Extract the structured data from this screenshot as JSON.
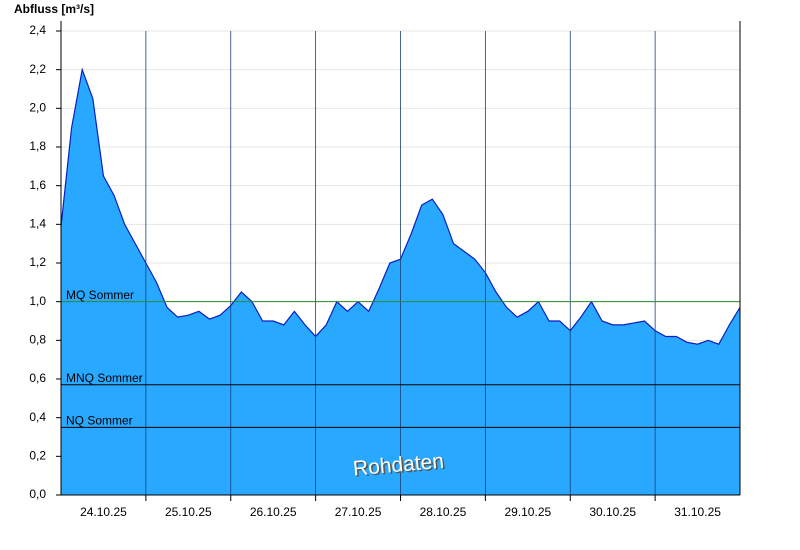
{
  "chart_data": {
    "type": "area",
    "title": "Abfluss [m³/s]",
    "annotation": "Rohdaten",
    "color": "#29a8ff",
    "line_color": "#0a1fbf",
    "xlim": [
      0,
      8
    ],
    "xticks": [
      {
        "value": 0.5,
        "label": "24.10.25"
      },
      {
        "value": 1.5,
        "label": "25.10.25"
      },
      {
        "value": 2.5,
        "label": "26.10.25"
      },
      {
        "value": 3.5,
        "label": "27.10.25"
      },
      {
        "value": 4.5,
        "label": "28.10.25"
      },
      {
        "value": 5.5,
        "label": "29.10.25"
      },
      {
        "value": 6.5,
        "label": "30.10.25"
      },
      {
        "value": 7.5,
        "label": "31.10.25"
      }
    ],
    "xgrid": [
      1,
      2,
      3,
      4,
      5,
      6,
      7
    ],
    "ylim": [
      0,
      2.4
    ],
    "yticks": [
      {
        "value": 0,
        "label": "0,0"
      },
      {
        "value": 0.2,
        "label": "0,2"
      },
      {
        "value": 0.4,
        "label": "0,4"
      },
      {
        "value": 0.6,
        "label": "0,6"
      },
      {
        "value": 0.8,
        "label": "0,8"
      },
      {
        "value": 1.0,
        "label": "1,0"
      },
      {
        "value": 1.2,
        "label": "1,2"
      },
      {
        "value": 1.4,
        "label": "1,4"
      },
      {
        "value": 1.6,
        "label": "1,6"
      },
      {
        "value": 1.8,
        "label": "1,8"
      },
      {
        "value": 2.0,
        "label": "2,0"
      },
      {
        "value": 2.2,
        "label": "2,2"
      },
      {
        "value": 2.4,
        "label": "2,4"
      }
    ],
    "grid": true,
    "reference_lines": [
      {
        "name": "MQ Sommer",
        "value": 1.0,
        "color": "#2e8b2e"
      },
      {
        "name": "MNQ Sommer",
        "value": 0.57,
        "color": "#000000"
      },
      {
        "name": "NQ Sommer",
        "value": 0.35,
        "color": "#000000"
      }
    ],
    "values": [
      1.39,
      1.9,
      2.2,
      2.05,
      1.65,
      1.55,
      1.4,
      1.3,
      1.2,
      1.1,
      0.97,
      0.92,
      0.93,
      0.95,
      0.91,
      0.93,
      0.98,
      1.05,
      1.0,
      0.9,
      0.9,
      0.88,
      0.95,
      0.88,
      0.82,
      0.88,
      1.0,
      0.95,
      1.0,
      0.95,
      1.07,
      1.2,
      1.22,
      1.35,
      1.5,
      1.53,
      1.45,
      1.3,
      1.26,
      1.22,
      1.15,
      1.05,
      0.97,
      0.92,
      0.95,
      1.0,
      0.9,
      0.9,
      0.85,
      0.92,
      1.0,
      0.9,
      0.88,
      0.88,
      0.89,
      0.9,
      0.85,
      0.82,
      0.82,
      0.79,
      0.78,
      0.8,
      0.78,
      0.88,
      0.97
    ]
  }
}
